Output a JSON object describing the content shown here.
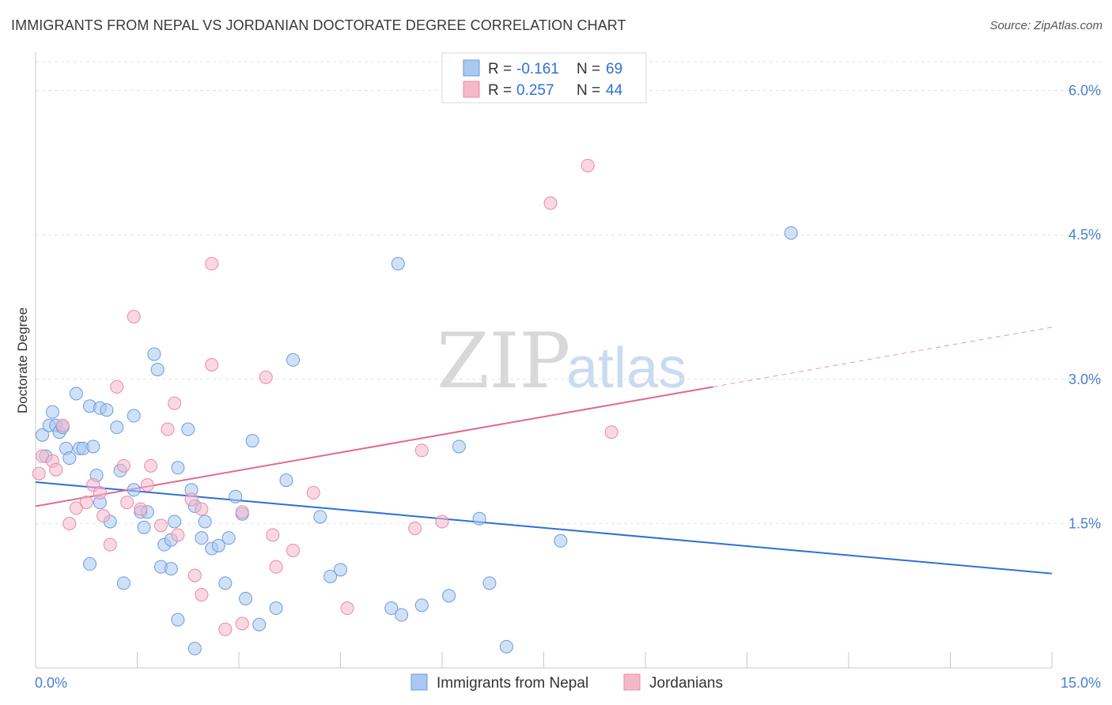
{
  "header": {
    "title": "IMMIGRANTS FROM NEPAL VS JORDANIAN DOCTORATE DEGREE CORRELATION CHART",
    "source": "Source: ZipAtlas.com"
  },
  "watermark": {
    "zip": "ZIP",
    "atlas": "atlas"
  },
  "legend": {
    "r_label": "R =",
    "n_label": "N =",
    "rows": [
      {
        "r": "-0.161",
        "n": "69"
      },
      {
        "r": "0.257",
        "n": "44"
      }
    ]
  },
  "bottom_legend": {
    "items": [
      "Immigrants from Nepal",
      "Jordanians"
    ]
  },
  "colors": {
    "nepal_fill": "#aac8f0",
    "nepal_stroke": "#6a9be0",
    "nepal_line": "#2f6fd6",
    "jordan_fill": "#f5b8cb",
    "jordan_stroke": "#e88aa8",
    "jordan_line": "#e06a92"
  },
  "chart_data": {
    "type": "scatter",
    "title": "IMMIGRANTS FROM NEPAL VS JORDANIAN DOCTORATE DEGREE CORRELATION CHART",
    "xlabel": "",
    "ylabel": "Doctorate Degree",
    "xlim": [
      0,
      15
    ],
    "ylim": [
      0,
      6.3
    ],
    "x_tick_labels": [
      "0.0%",
      "15.0%"
    ],
    "y_ticks": [
      1.5,
      3.0,
      4.5,
      6.0
    ],
    "y_tick_labels": [
      "1.5%",
      "3.0%",
      "4.5%",
      "6.0%"
    ],
    "grid": true,
    "legend_position": "top-center",
    "series": [
      {
        "name": "Immigrants from Nepal",
        "R": -0.161,
        "N": 69,
        "trend": {
          "x": [
            0,
            15
          ],
          "y": [
            1.93,
            0.98
          ]
        },
        "points": [
          [
            0.1,
            2.42
          ],
          [
            0.15,
            2.2
          ],
          [
            0.2,
            2.52
          ],
          [
            0.25,
            2.66
          ],
          [
            0.3,
            2.52
          ],
          [
            0.35,
            2.45
          ],
          [
            0.4,
            2.5
          ],
          [
            0.45,
            2.28
          ],
          [
            0.6,
            2.85
          ],
          [
            0.65,
            2.28
          ],
          [
            0.7,
            2.28
          ],
          [
            0.8,
            2.72
          ],
          [
            0.85,
            2.3
          ],
          [
            0.9,
            2.0
          ],
          [
            0.95,
            2.7
          ],
          [
            1.05,
            2.68
          ],
          [
            1.2,
            2.5
          ],
          [
            1.25,
            2.05
          ],
          [
            1.45,
            1.85
          ],
          [
            1.45,
            2.62
          ],
          [
            1.55,
            1.62
          ],
          [
            1.6,
            1.46
          ],
          [
            1.65,
            1.62
          ],
          [
            1.75,
            3.26
          ],
          [
            1.8,
            3.1
          ],
          [
            1.85,
            1.05
          ],
          [
            1.9,
            1.28
          ],
          [
            2.0,
            1.03
          ],
          [
            2.0,
            1.33
          ],
          [
            2.05,
            1.52
          ],
          [
            2.1,
            2.08
          ],
          [
            2.1,
            0.5
          ],
          [
            2.25,
            2.48
          ],
          [
            2.3,
            1.85
          ],
          [
            2.35,
            0.2
          ],
          [
            2.35,
            1.68
          ],
          [
            2.45,
            1.35
          ],
          [
            2.5,
            1.52
          ],
          [
            2.6,
            1.24
          ],
          [
            2.7,
            1.27
          ],
          [
            2.8,
            0.88
          ],
          [
            2.85,
            1.35
          ],
          [
            3.05,
            1.6
          ],
          [
            3.1,
            0.72
          ],
          [
            3.2,
            2.36
          ],
          [
            3.3,
            0.45
          ],
          [
            3.55,
            0.62
          ],
          [
            3.7,
            1.95
          ],
          [
            3.8,
            3.2
          ],
          [
            4.2,
            1.57
          ],
          [
            4.35,
            0.95
          ],
          [
            4.5,
            1.02
          ],
          [
            5.25,
            0.62
          ],
          [
            5.35,
            4.2
          ],
          [
            5.4,
            0.55
          ],
          [
            5.7,
            0.65
          ],
          [
            6.1,
            0.75
          ],
          [
            6.25,
            2.3
          ],
          [
            6.55,
            1.55
          ],
          [
            6.7,
            0.88
          ],
          [
            6.95,
            0.22
          ],
          [
            7.75,
            1.32
          ],
          [
            11.15,
            4.52
          ],
          [
            0.95,
            1.72
          ],
          [
            1.3,
            0.88
          ],
          [
            0.8,
            1.08
          ],
          [
            2.95,
            1.78
          ],
          [
            1.1,
            1.52
          ],
          [
            0.5,
            2.18
          ]
        ]
      },
      {
        "name": "Jordanians",
        "R": 0.257,
        "N": 44,
        "trend": {
          "x": [
            0,
            10.0
          ],
          "y": [
            1.68,
            2.92
          ]
        },
        "trend_dashed": {
          "x": [
            10.0,
            15.0
          ],
          "y": [
            2.92,
            3.54
          ]
        },
        "points": [
          [
            0.05,
            2.02
          ],
          [
            0.1,
            2.2
          ],
          [
            0.25,
            2.15
          ],
          [
            0.3,
            2.06
          ],
          [
            0.4,
            2.52
          ],
          [
            0.5,
            1.5
          ],
          [
            0.6,
            1.66
          ],
          [
            0.75,
            1.72
          ],
          [
            0.85,
            1.9
          ],
          [
            0.95,
            1.82
          ],
          [
            1.0,
            1.58
          ],
          [
            1.1,
            1.28
          ],
          [
            1.2,
            2.92
          ],
          [
            1.3,
            2.1
          ],
          [
            1.35,
            1.72
          ],
          [
            1.45,
            3.65
          ],
          [
            1.55,
            1.65
          ],
          [
            1.65,
            1.9
          ],
          [
            1.7,
            2.1
          ],
          [
            1.85,
            1.48
          ],
          [
            1.95,
            2.48
          ],
          [
            2.05,
            2.75
          ],
          [
            2.1,
            1.38
          ],
          [
            2.3,
            1.75
          ],
          [
            2.35,
            0.96
          ],
          [
            2.45,
            0.76
          ],
          [
            2.45,
            1.65
          ],
          [
            2.6,
            4.2
          ],
          [
            2.6,
            3.15
          ],
          [
            2.8,
            0.4
          ],
          [
            3.05,
            1.62
          ],
          [
            3.05,
            0.46
          ],
          [
            3.4,
            3.02
          ],
          [
            3.5,
            1.38
          ],
          [
            3.55,
            1.05
          ],
          [
            3.8,
            1.22
          ],
          [
            4.1,
            1.82
          ],
          [
            4.6,
            0.62
          ],
          [
            5.6,
            1.45
          ],
          [
            5.7,
            2.26
          ],
          [
            6.0,
            1.52
          ],
          [
            7.6,
            4.83
          ],
          [
            8.15,
            5.22
          ],
          [
            8.5,
            2.45
          ]
        ]
      }
    ]
  }
}
